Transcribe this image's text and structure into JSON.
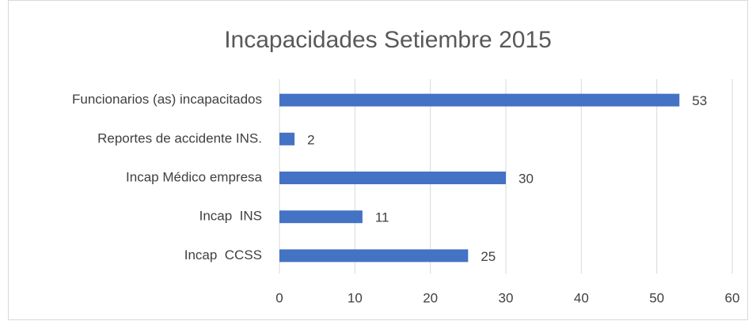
{
  "chart_data": {
    "type": "bar",
    "orientation": "horizontal",
    "title": "Incapacidades Setiembre 2015",
    "categories": [
      "Funcionarios (as) incapacitados",
      "Reportes de accidente INS.",
      "Incap Médico empresa",
      "Incap  INS",
      "Incap  CCSS"
    ],
    "values": [
      53,
      2,
      30,
      11,
      25
    ],
    "color": "#4472c4",
    "xlim": [
      0,
      60
    ],
    "xticks": [
      0,
      10,
      20,
      30,
      40,
      50,
      60
    ],
    "grid": true
  }
}
